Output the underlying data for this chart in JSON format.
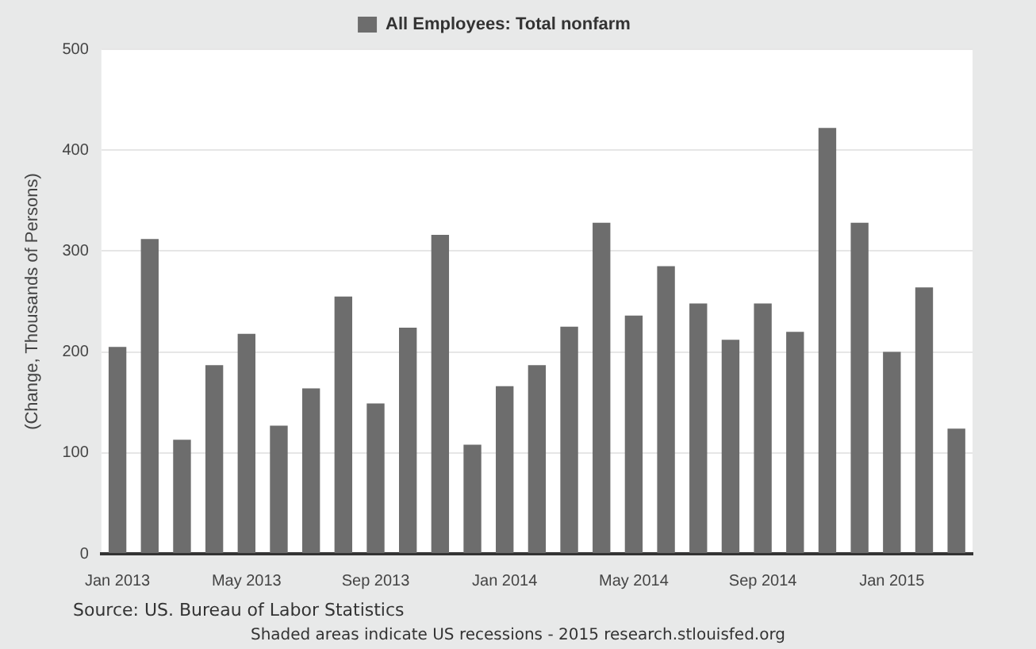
{
  "chart_data": {
    "type": "bar",
    "ylabel": "(Change, Thousands of Persons)",
    "categories": [
      "Jan 2013",
      null,
      null,
      null,
      "May 2013",
      null,
      null,
      null,
      "Sep 2013",
      null,
      null,
      null,
      "Jan 2014",
      null,
      null,
      null,
      "May 2014",
      null,
      null,
      null,
      "Sep 2014",
      null,
      null,
      null,
      "Jan 2015",
      null,
      null
    ],
    "series": [
      {
        "name": "All Employees: Total nonfarm",
        "color": "#6d6d6d",
        "values": [
          205,
          312,
          113,
          187,
          218,
          127,
          164,
          255,
          149,
          224,
          316,
          108,
          166,
          187,
          225,
          328,
          236,
          285,
          248,
          212,
          248,
          220,
          422,
          328,
          200,
          264,
          124
        ]
      }
    ],
    "ylim": [
      0,
      500
    ],
    "yticks": [
      0,
      100,
      200,
      300,
      400,
      500
    ],
    "grid": "y",
    "legend": "top",
    "annotations": [
      "Source: US. Bureau of Labor Statistics",
      "Shaded areas indicate US recessions - 2015 research.stlouisfed.org"
    ]
  }
}
